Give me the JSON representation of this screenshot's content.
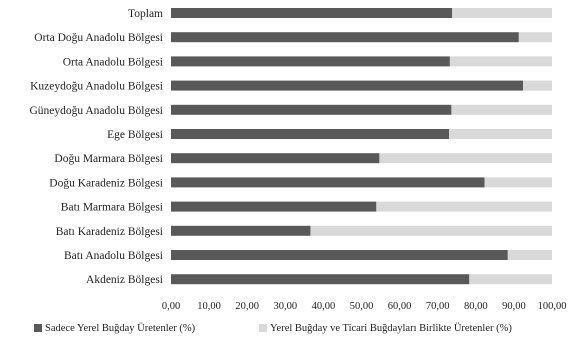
{
  "chart_data": {
    "type": "bar",
    "orientation": "horizontal",
    "stacked": true,
    "categories": [
      "Toplam",
      "Orta Doğu Anadolu Bölgesi",
      "Orta Anadolu Bölgesi",
      "Kuzeydoğu Anadolu Bölgesi",
      "Güneydoğu Anadolu Bölgesi",
      "Ege Bölgesi",
      "Doğu Marmara Bölgesi",
      "Doğu Karadeniz Bölgesi",
      "Batı Marmara Bölgesi",
      "Batı Karadeniz Bölgesi",
      "Batı Anadolu Bölgesi",
      "Akdeniz Bölgesi"
    ],
    "series": [
      {
        "name": "Sadece Yerel Buğday Üretenler (%)",
        "color": "#595959",
        "values": [
          73.8,
          91.3,
          73.2,
          92.4,
          73.6,
          73.0,
          54.7,
          82.3,
          53.9,
          36.6,
          88.4,
          78.3
        ]
      },
      {
        "name": "Yerel Buğday ve Ticari Buğdayları Birlikte Üretenler (%)",
        "color": "#d9d9d9",
        "values": [
          26.2,
          8.7,
          26.8,
          7.6,
          26.4,
          27.0,
          45.3,
          17.7,
          46.1,
          63.4,
          11.6,
          21.7
        ]
      }
    ],
    "x_ticks": [
      "0,00",
      "10,00",
      "20,00",
      "30,00",
      "40,00",
      "50,00",
      "60,00",
      "70,00",
      "80,00",
      "90,00",
      "100,00"
    ],
    "xlim": [
      0,
      100
    ],
    "grid": false,
    "legend_position": "bottom",
    "title": "",
    "xlabel": "",
    "ylabel": ""
  }
}
